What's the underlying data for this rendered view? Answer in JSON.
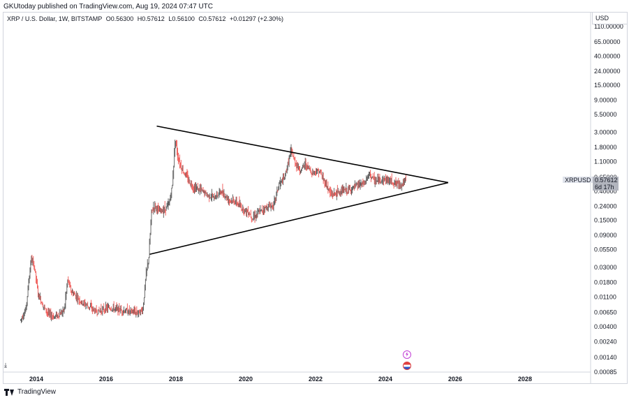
{
  "header": {
    "published": "GKUtoday published on TradingView.com, Aug 19, 2024 07:47 UTC"
  },
  "legend": {
    "symbol": "XRP / U.S. Dollar, 1W, BITSTAMP",
    "open": "O0.56300",
    "high": "H0.57612",
    "low": "L0.56100",
    "close": "C0.57612",
    "change": "+0.01297 (+2.30%)"
  },
  "axis": {
    "currency": "USD"
  },
  "price_tag": {
    "symbol": "XRPUSD",
    "price": "0.57612",
    "countdown": "6d 17h"
  },
  "footer": {
    "brand": "TradingView"
  },
  "colors": {
    "up": "#555555",
    "down": "#ef5350",
    "line": "#000000",
    "axis": "#131722"
  },
  "chart_data": {
    "type": "line",
    "scale": "log",
    "yticks": [
      {
        "label": "110.00000",
        "value": 110
      },
      {
        "label": "65.00000",
        "value": 65
      },
      {
        "label": "40.00000",
        "value": 40
      },
      {
        "label": "24.00000",
        "value": 24
      },
      {
        "label": "15.00000",
        "value": 15
      },
      {
        "label": "9.00000",
        "value": 9
      },
      {
        "label": "5.50000",
        "value": 5.5
      },
      {
        "label": "3.00000",
        "value": 3
      },
      {
        "label": "1.80000",
        "value": 1.8
      },
      {
        "label": "1.10000",
        "value": 1.1
      },
      {
        "label": "0.65000",
        "value": 0.65
      },
      {
        "label": "0.40000",
        "value": 0.4
      },
      {
        "label": "0.24000",
        "value": 0.24
      },
      {
        "label": "0.15000",
        "value": 0.15
      },
      {
        "label": "0.09000",
        "value": 0.09
      },
      {
        "label": "0.05500",
        "value": 0.055
      },
      {
        "label": "0.03000",
        "value": 0.03
      },
      {
        "label": "0.01800",
        "value": 0.018
      },
      {
        "label": "0.01100",
        "value": 0.011
      },
      {
        "label": "0.00650",
        "value": 0.0065
      },
      {
        "label": "0.00400",
        "value": 0.004
      },
      {
        "label": "0.00240",
        "value": 0.0024
      },
      {
        "label": "0.00140",
        "value": 0.0014
      },
      {
        "label": "0.00085",
        "value": 0.00085
      }
    ],
    "xticks": [
      "2014",
      "2016",
      "2018",
      "2020",
      "2022",
      "2024",
      "2026",
      "2028"
    ],
    "x_range": [
      2013.2,
      2030.0
    ],
    "series": [
      {
        "x": [
          2013.55,
          2013.7,
          2013.85,
          2013.95,
          2014.05,
          2014.2,
          2014.35,
          2014.5,
          2014.65,
          2014.8,
          2014.9,
          2015.0,
          2015.15,
          2015.3,
          2015.5,
          2015.7,
          2015.9,
          2016.1,
          2016.3,
          2016.5,
          2016.7,
          2016.9,
          2017.05,
          2017.15,
          2017.22,
          2017.3,
          2017.4,
          2017.5,
          2017.65,
          2017.8,
          2017.9,
          2017.98,
          2018.05,
          2018.15,
          2018.3,
          2018.5,
          2018.7,
          2018.9,
          2019.1,
          2019.3,
          2019.5,
          2019.7,
          2019.9,
          2020.1,
          2020.2,
          2020.4,
          2020.6,
          2020.8,
          2020.95,
          2021.1,
          2021.3,
          2021.4,
          2021.55,
          2021.7,
          2021.9,
          2022.1,
          2022.3,
          2022.45,
          2022.6,
          2022.8,
          2023.0,
          2023.2,
          2023.4,
          2023.55,
          2023.7,
          2023.9,
          2024.1,
          2024.3,
          2024.45,
          2024.6
        ],
        "y": [
          0.005,
          0.007,
          0.04,
          0.03,
          0.012,
          0.008,
          0.006,
          0.0055,
          0.006,
          0.007,
          0.02,
          0.013,
          0.011,
          0.009,
          0.008,
          0.0065,
          0.007,
          0.0075,
          0.0072,
          0.0068,
          0.0066,
          0.0064,
          0.007,
          0.025,
          0.04,
          0.2,
          0.25,
          0.2,
          0.21,
          0.25,
          0.5,
          2.5,
          1.3,
          0.9,
          0.65,
          0.45,
          0.42,
          0.35,
          0.32,
          0.4,
          0.3,
          0.28,
          0.22,
          0.19,
          0.16,
          0.2,
          0.23,
          0.25,
          0.5,
          0.6,
          1.6,
          1.1,
          0.8,
          1.0,
          0.75,
          0.8,
          0.5,
          0.35,
          0.38,
          0.4,
          0.42,
          0.48,
          0.52,
          0.72,
          0.55,
          0.6,
          0.58,
          0.52,
          0.5,
          0.57612
        ]
      }
    ],
    "trendlines": [
      {
        "x": [
          2017.45,
          2025.8
        ],
        "y": [
          3.7,
          0.54
        ]
      },
      {
        "x": [
          2017.25,
          2025.8
        ],
        "y": [
          0.047,
          0.54
        ]
      }
    ],
    "last_price": 0.57612,
    "grid": false
  }
}
